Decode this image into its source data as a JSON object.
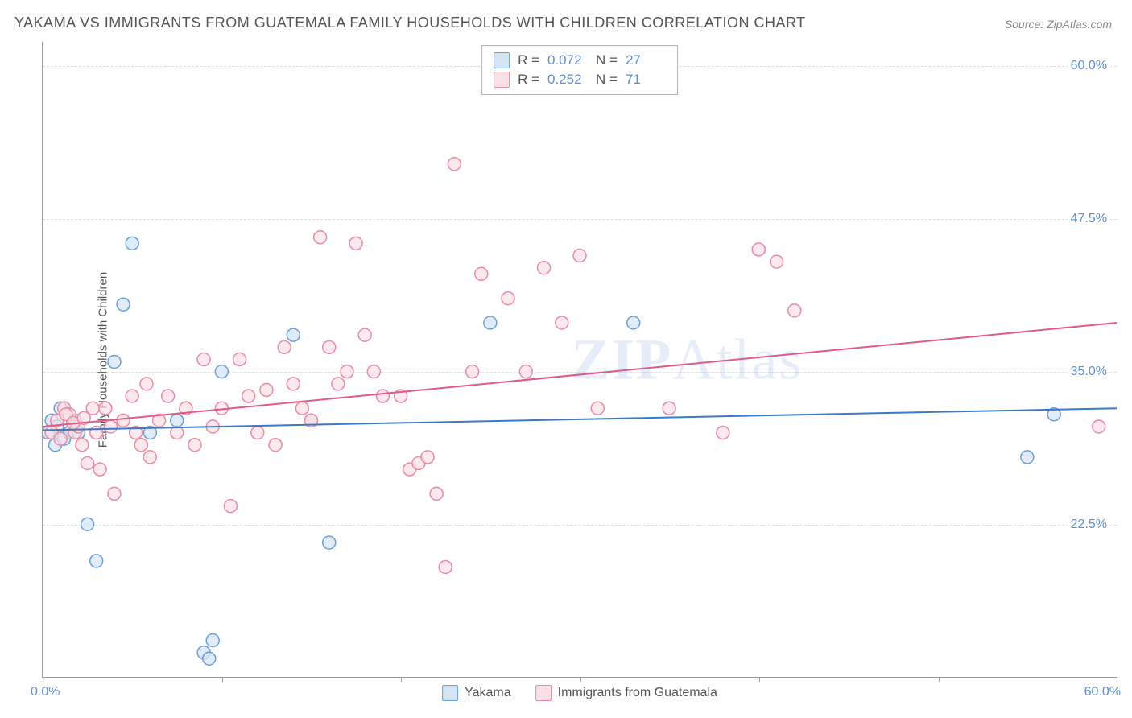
{
  "title": "YAKAMA VS IMMIGRANTS FROM GUATEMALA FAMILY HOUSEHOLDS WITH CHILDREN CORRELATION CHART",
  "source": "Source: ZipAtlas.com",
  "watermark_bold": "ZIP",
  "watermark_light": "Atlas",
  "ylabel": "Family Households with Children",
  "chart": {
    "type": "scatter",
    "xlim": [
      0,
      60
    ],
    "ylim": [
      10,
      62
    ],
    "x_ticks": [
      0,
      10,
      20,
      30,
      40,
      50,
      60
    ],
    "x_min_label": "0.0%",
    "x_max_label": "60.0%",
    "y_gridlines": [
      22.5,
      35.0,
      47.5,
      60.0
    ],
    "y_labels": [
      "22.5%",
      "35.0%",
      "47.5%",
      "60.0%"
    ],
    "marker_radius": 8,
    "marker_stroke_width": 1.5,
    "line_width": 2,
    "background_color": "#ffffff",
    "grid_color": "#dddddd",
    "axis_color": "#999999",
    "tick_label_color": "#5b8fd6",
    "series": [
      {
        "name": "Yakama",
        "fill": "#d5e4f5",
        "stroke": "#6a9fd8",
        "line_color": "#3b78c9",
        "trend": {
          "x1": 0,
          "y1": 30.2,
          "x2": 60,
          "y2": 32.0
        },
        "stats": {
          "R": "0.072",
          "N": "27"
        },
        "points": [
          [
            0.3,
            30
          ],
          [
            0.5,
            31
          ],
          [
            0.7,
            29
          ],
          [
            0.8,
            30.5
          ],
          [
            1.0,
            32
          ],
          [
            1.2,
            29.5
          ],
          [
            1.5,
            30
          ],
          [
            1.8,
            31
          ],
          [
            2.0,
            30
          ],
          [
            2.5,
            22.5
          ],
          [
            3.0,
            19.5
          ],
          [
            4.0,
            35.8
          ],
          [
            4.5,
            40.5
          ],
          [
            5.0,
            45.5
          ],
          [
            6.0,
            30
          ],
          [
            7.5,
            31
          ],
          [
            9.0,
            12
          ],
          [
            9.3,
            11.5
          ],
          [
            9.5,
            13
          ],
          [
            10.0,
            35
          ],
          [
            14.0,
            38
          ],
          [
            15.0,
            31
          ],
          [
            16.0,
            21
          ],
          [
            25.0,
            39
          ],
          [
            33.0,
            39
          ],
          [
            55.0,
            28
          ],
          [
            56.5,
            31.5
          ]
        ]
      },
      {
        "name": "Immigrants from Guatemala",
        "fill": "#f9dfe6",
        "stroke": "#e88ba5",
        "line_color": "#e15a85",
        "trend": {
          "x1": 0,
          "y1": 30.5,
          "x2": 60,
          "y2": 39.0
        },
        "stats": {
          "R": "0.252",
          "N": "71"
        },
        "points": [
          [
            0.5,
            30
          ],
          [
            0.8,
            31
          ],
          [
            1.0,
            29.5
          ],
          [
            1.2,
            32
          ],
          [
            1.5,
            31.5
          ],
          [
            1.8,
            30
          ],
          [
            2.0,
            30.5
          ],
          [
            2.2,
            29
          ],
          [
            2.5,
            27.5
          ],
          [
            2.8,
            32
          ],
          [
            3.0,
            30
          ],
          [
            3.2,
            27
          ],
          [
            3.5,
            32
          ],
          [
            3.8,
            30.5
          ],
          [
            4.0,
            25
          ],
          [
            4.5,
            31
          ],
          [
            5.0,
            33
          ],
          [
            5.2,
            30
          ],
          [
            5.5,
            29
          ],
          [
            5.8,
            34
          ],
          [
            6.0,
            28
          ],
          [
            6.5,
            31
          ],
          [
            7.0,
            33
          ],
          [
            7.5,
            30
          ],
          [
            8.0,
            32
          ],
          [
            8.5,
            29
          ],
          [
            9.0,
            36
          ],
          [
            9.5,
            30.5
          ],
          [
            10.0,
            32
          ],
          [
            10.5,
            24
          ],
          [
            11.0,
            36
          ],
          [
            11.5,
            33
          ],
          [
            12.0,
            30
          ],
          [
            12.5,
            33.5
          ],
          [
            13.0,
            29
          ],
          [
            13.5,
            37
          ],
          [
            14.0,
            34
          ],
          [
            14.5,
            32
          ],
          [
            15.0,
            31
          ],
          [
            15.5,
            46
          ],
          [
            16.0,
            37
          ],
          [
            16.5,
            34
          ],
          [
            17.0,
            35
          ],
          [
            17.5,
            45.5
          ],
          [
            18.0,
            38
          ],
          [
            18.5,
            35
          ],
          [
            19.0,
            33
          ],
          [
            20.0,
            33
          ],
          [
            20.5,
            27
          ],
          [
            21.0,
            27.5
          ],
          [
            21.5,
            28
          ],
          [
            22.0,
            25
          ],
          [
            22.5,
            19
          ],
          [
            23.0,
            52
          ],
          [
            24.0,
            35
          ],
          [
            24.5,
            43
          ],
          [
            26.0,
            41
          ],
          [
            27.0,
            35
          ],
          [
            28.0,
            43.5
          ],
          [
            29.0,
            39
          ],
          [
            30.0,
            44.5
          ],
          [
            31.0,
            32
          ],
          [
            35.0,
            32
          ],
          [
            38.0,
            30
          ],
          [
            40.0,
            45
          ],
          [
            41.0,
            44
          ],
          [
            42.0,
            40
          ],
          [
            59.0,
            30.5
          ],
          [
            1.3,
            31.5
          ],
          [
            1.7,
            30.8
          ],
          [
            2.3,
            31.2
          ]
        ]
      }
    ]
  },
  "stat_box": {
    "r_label": "R =",
    "n_label": "N ="
  },
  "legend": {
    "label1": "Yakama",
    "label2": "Immigrants from Guatemala"
  }
}
